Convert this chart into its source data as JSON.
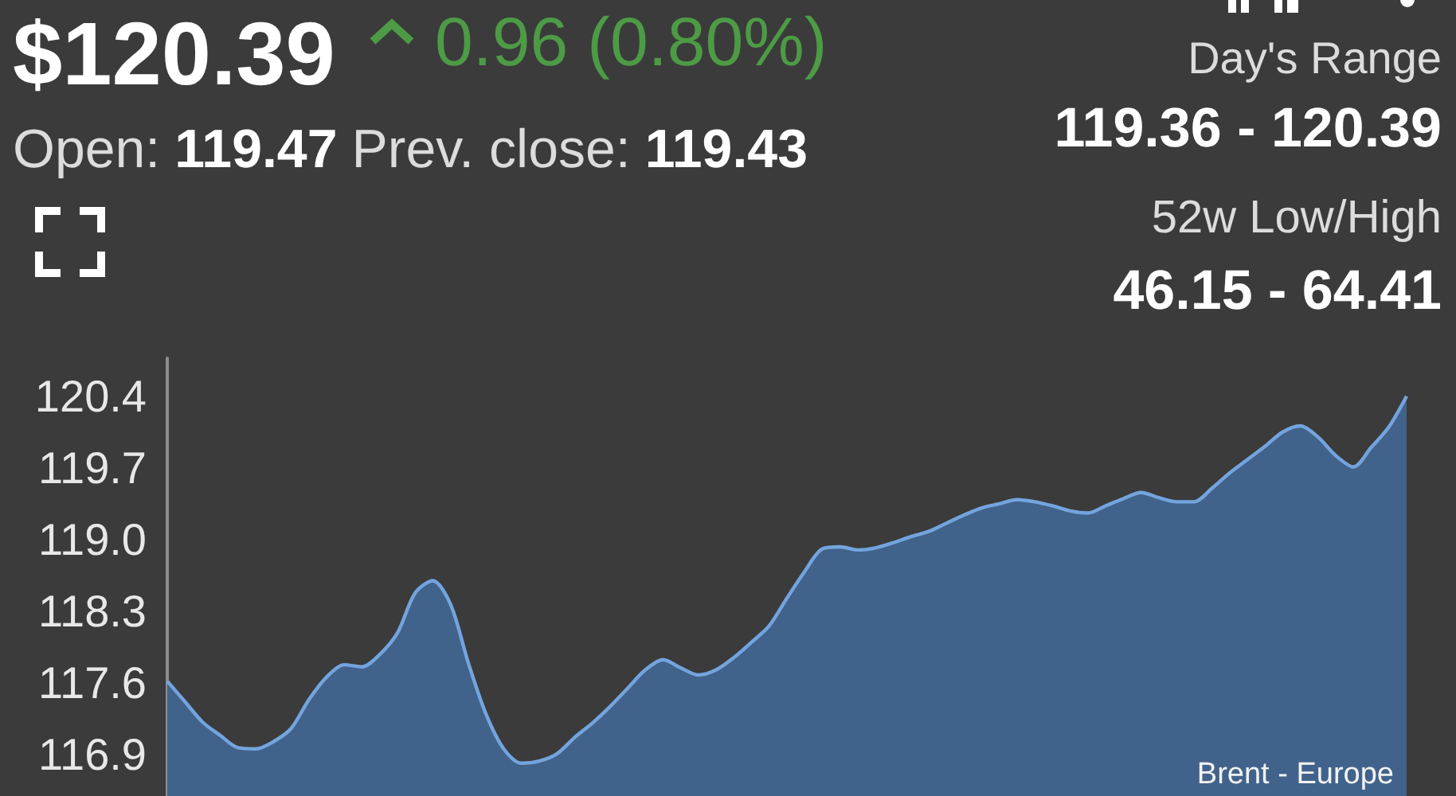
{
  "chart_data": {
    "type": "area",
    "title": "$120.39",
    "subtitle": "0.96 (0.80%)",
    "annotations": [
      "Open:",
      "119.47",
      "Prev. close:",
      "119.43",
      "Day's Range",
      "119.36 - 120.39",
      "52w Low/High",
      "46.15 - 64.41",
      "Brent - Europe"
    ],
    "categories": [
      null,
      null,
      null,
      null,
      null,
      null,
      null,
      null,
      null,
      null,
      null,
      null,
      null,
      null,
      null,
      null,
      null,
      null,
      null,
      null,
      null,
      null,
      null,
      null,
      null,
      null,
      null,
      null,
      null,
      null,
      null,
      null,
      null,
      null,
      null,
      null,
      null,
      null,
      null,
      null,
      null,
      null,
      null,
      null,
      null,
      null,
      null,
      null,
      null,
      null,
      null,
      null,
      null,
      null,
      null,
      null,
      null,
      null,
      null,
      null,
      null,
      null,
      null,
      null,
      null,
      null,
      null,
      null,
      null,
      null,
      null
    ],
    "series": [
      {
        "color": "#41638b",
        "values": [
          117.62,
          117.42,
          117.22,
          117.09,
          116.97,
          116.96,
          117.03,
          117.16,
          117.44,
          117.66,
          117.78,
          117.76,
          117.88,
          118.09,
          118.48,
          118.6,
          118.37,
          117.8,
          117.3,
          116.96,
          116.82,
          116.84,
          116.91,
          117.07,
          117.21,
          117.37,
          117.55,
          117.73,
          117.83,
          117.75,
          117.68,
          117.73,
          117.85,
          118.0,
          118.16,
          118.43,
          118.69,
          118.91,
          118.93,
          118.9,
          118.92,
          118.97,
          119.03,
          119.08,
          119.16,
          119.24,
          119.31,
          119.35,
          119.39,
          119.37,
          119.33,
          119.28,
          119.26,
          119.33,
          119.4,
          119.46,
          119.41,
          119.37,
          119.37,
          119.5,
          119.65,
          119.78,
          119.91,
          120.05,
          120.11,
          120.0,
          119.82,
          119.71,
          119.9,
          120.1,
          120.4
        ]
      }
    ],
    "ylim": [
      116.5,
      120.77
    ],
    "yticks": [
      116.9,
      117.6,
      118.3,
      {
        "value": 119,
        "label": "119.0"
      },
      119.7,
      120.4
    ],
    "tick_labels": "y",
    "grid": false,
    "marker": "none"
  }
}
